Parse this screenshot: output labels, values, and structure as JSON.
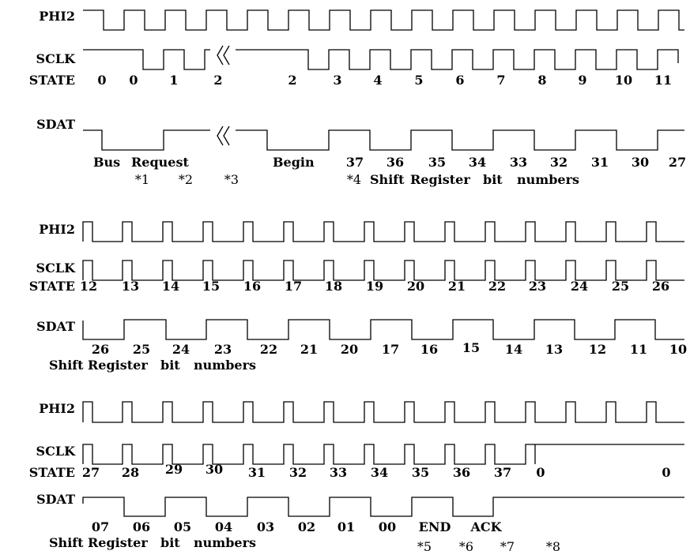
{
  "colors": {
    "ink": "#000000",
    "paper": "#ffffff"
  },
  "signals": {
    "phi2": "PHI2",
    "sclk": "SCLK",
    "state": "STATE",
    "sdat": "SDAT"
  },
  "sections": [
    {
      "phi2": {
        "label": "PHI2",
        "levels": "10101010101010101010101010101010101010101010101010"
      },
      "sclk": {
        "label": "SCLK",
        "levels": "111111101010111111111111111101010101010101010101010",
        "break": "⟨⟨"
      },
      "state": {
        "label": "STATE",
        "values": [
          "0",
          "0",
          "1",
          "2",
          "2",
          "3",
          "4",
          "5",
          "6",
          "7",
          "8",
          "9",
          "10",
          "11"
        ]
      },
      "sdat": {
        "label": "SDAT",
        "levels": "100001111111111000001111101010101010101010101010",
        "break": "⟨⟨",
        "bits": [
          "37",
          "36",
          "35",
          "34",
          "33",
          "32",
          "31",
          "30",
          "27"
        ],
        "notes": [
          "Bus",
          "Request",
          "Begin",
          "*1",
          "*2",
          "*3",
          "*4",
          "Shift",
          "Register",
          "bit",
          "numbers"
        ]
      }
    },
    {
      "phi2": {
        "label": "PHI2",
        "levels": "1010101010101010101010101010101010"
      },
      "sclk": {
        "label": "SCLK",
        "levels": "1010101010101010101010101010101010"
      },
      "state": {
        "label": "STATE",
        "values": [
          "12",
          "13",
          "14",
          "15",
          "16",
          "17",
          "18",
          "19",
          "20",
          "21",
          "22",
          "23",
          "24",
          "25",
          "26"
        ]
      },
      "sdat": {
        "label": "SDAT",
        "levels": "0011001100110011001100110011001100",
        "bits": [
          "26",
          "25",
          "24",
          "23",
          "22",
          "21",
          "20",
          "17",
          "16",
          "15",
          "14",
          "13",
          "12",
          "11",
          "10"
        ],
        "notes": [
          "Shift",
          "Register",
          "bit",
          "numbers"
        ]
      }
    },
    {
      "phi2": {
        "label": "PHI2",
        "levels": "1010101010101010101010101010101010"
      },
      "sclk": {
        "label": "SCLK",
        "levels": "1010101010101010101010101"
      },
      "state": {
        "label": "STATE",
        "values": [
          "27",
          "28",
          "29",
          "30",
          "31",
          "32",
          "33",
          "34",
          "35",
          "36",
          "37",
          "0",
          "0"
        ]
      },
      "sdat": {
        "label": "SDAT",
        "levels": "1001100110011001100110011001111111",
        "bits": [
          "07",
          "06",
          "05",
          "04",
          "03",
          "02",
          "01",
          "00"
        ],
        "notes": [
          "END",
          "ACK",
          "Shift",
          "Register",
          "bit",
          "numbers",
          "*5",
          "*6",
          "*7",
          "*8"
        ]
      }
    }
  ]
}
